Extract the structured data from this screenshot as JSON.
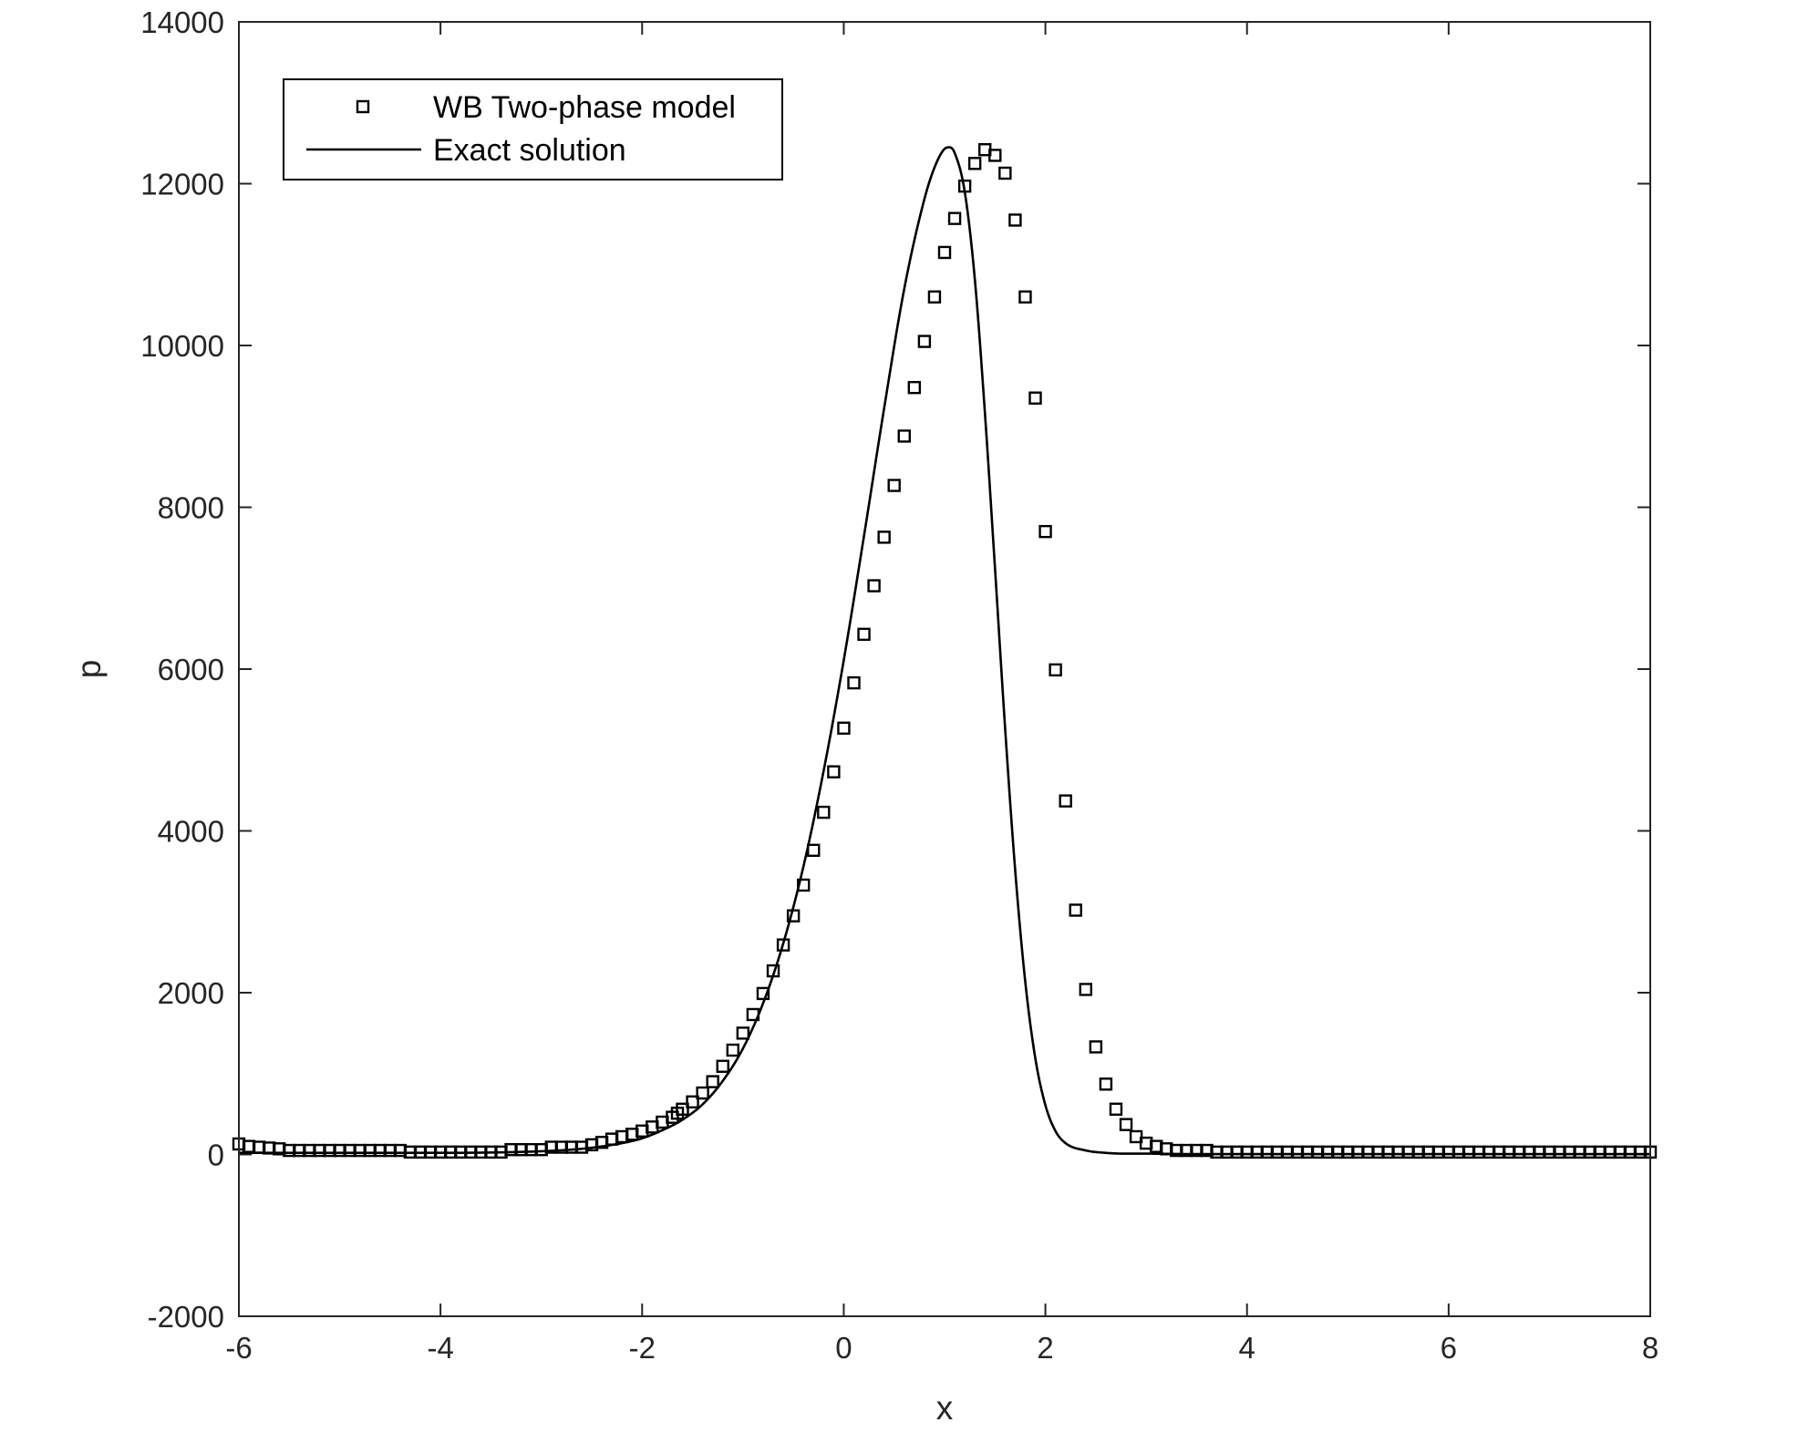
{
  "chart_data": {
    "type": "line",
    "xlabel": "x",
    "ylabel": "p",
    "xlim": [
      -6,
      8
    ],
    "ylim": [
      -2000,
      14000
    ],
    "x_ticks": [
      -6,
      -4,
      -2,
      0,
      2,
      4,
      6,
      8
    ],
    "y_ticks": [
      -2000,
      0,
      2000,
      4000,
      6000,
      8000,
      10000,
      12000,
      14000
    ],
    "x_tick_labels": [
      "-6",
      "-4",
      "-2",
      "0",
      "2",
      "4",
      "6",
      "8"
    ],
    "y_tick_labels": [
      "-2000",
      "0",
      "2000",
      "4000",
      "6000",
      "8000",
      "10000",
      "12000",
      "14000"
    ],
    "grid": false,
    "box": true,
    "legend": {
      "position": "top-left",
      "entries": [
        {
          "label": "WB Two-phase model",
          "marker": "square",
          "line": "none"
        },
        {
          "label": "Exact solution",
          "marker": "none",
          "line": "solid"
        }
      ]
    },
    "colors": {
      "series": "#000000",
      "axes": "#262626"
    },
    "series": [
      {
        "name": "WB Two-phase model",
        "style": "markers",
        "x": [
          -6.0,
          -5.9,
          -5.8,
          -5.7,
          -5.6,
          -5.5,
          -5.4,
          -5.3,
          -5.2,
          -5.1,
          -5.0,
          -4.9,
          -4.8,
          -4.7,
          -4.6,
          -4.5,
          -4.4,
          -4.3,
          -4.2,
          -4.1,
          -4.0,
          -3.9,
          -3.8,
          -3.7,
          -3.6,
          -3.5,
          -3.4,
          -3.3,
          -3.2,
          -3.1,
          -3.0,
          -2.9,
          -2.8,
          -2.7,
          -2.6,
          -2.5,
          -2.4,
          -2.3,
          -2.2,
          -2.1,
          -2.0,
          -1.9,
          -1.8,
          -1.7,
          -1.65,
          -1.6,
          -1.5,
          -1.4,
          -1.3,
          -1.2,
          -1.1,
          -1.0,
          -0.9,
          -0.8,
          -0.7,
          -0.6,
          -0.5,
          -0.4,
          -0.3,
          -0.2,
          -0.1,
          0.0,
          0.1,
          0.2,
          0.3,
          0.4,
          0.5,
          0.6,
          0.7,
          0.8,
          0.9,
          1.0,
          1.1,
          1.2,
          1.3,
          1.4,
          1.5,
          1.6,
          1.7,
          1.8,
          1.9,
          2.0,
          2.1,
          2.2,
          2.3,
          2.4,
          2.5,
          2.6,
          2.7,
          2.8,
          2.9,
          3.0,
          3.1,
          3.2,
          3.3,
          3.4,
          3.5,
          3.6,
          3.7,
          3.8,
          3.9,
          4.0,
          4.1,
          4.2,
          4.3,
          4.4,
          4.5,
          4.6,
          4.7,
          4.8,
          4.9,
          5.0,
          5.1,
          5.2,
          5.3,
          5.4,
          5.5,
          5.6,
          5.7,
          5.8,
          5.9,
          6.0,
          6.1,
          6.2,
          6.3,
          6.4,
          6.5,
          6.6,
          6.7,
          6.8,
          6.9,
          7.0,
          7.1,
          7.2,
          7.3,
          7.4,
          7.5,
          7.6,
          7.7,
          7.8,
          7.9,
          8.0
        ],
        "y": [
          130,
          100,
          90,
          80,
          70,
          50,
          50,
          50,
          50,
          50,
          50,
          50,
          50,
          50,
          50,
          50,
          50,
          30,
          30,
          30,
          30,
          30,
          30,
          30,
          30,
          30,
          30,
          60,
          60,
          60,
          60,
          90,
          90,
          90,
          90,
          120,
          150,
          190,
          220,
          250,
          290,
          340,
          400,
          460,
          510,
          560,
          650,
          760,
          900,
          1090,
          1290,
          1500,
          1730,
          1990,
          2270,
          2590,
          2950,
          3330,
          3760,
          4230,
          4730,
          5270,
          5830,
          6430,
          7030,
          7630,
          8270,
          8880,
          9480,
          10050,
          10600,
          11150,
          11570,
          11970,
          12250,
          12420,
          12350,
          12130,
          11550,
          10600,
          9350,
          7700,
          5990,
          4370,
          3020,
          2040,
          1330,
          870,
          560,
          370,
          220,
          140,
          100,
          70,
          50,
          50,
          50,
          50,
          30,
          30,
          30,
          30,
          30,
          30,
          30,
          30,
          30,
          30,
          30,
          30,
          30,
          30,
          30,
          30,
          30,
          30,
          30,
          30,
          30,
          30,
          30,
          30,
          30,
          30,
          30,
          30,
          30,
          30,
          30,
          30,
          30,
          30,
          30,
          30,
          30,
          30,
          30,
          30,
          30,
          30,
          30,
          30
        ]
      },
      {
        "name": "Exact solution",
        "style": "line",
        "x": [
          -6.0,
          -5.0,
          -4.0,
          -3.0,
          -2.6,
          -2.4,
          -2.2,
          -2.0,
          -1.8,
          -1.6,
          -1.4,
          -1.2,
          -1.0,
          -0.8,
          -0.6,
          -0.4,
          -0.2,
          0.0,
          0.2,
          0.4,
          0.6,
          0.8,
          0.9,
          1.0,
          1.05,
          1.1,
          1.2,
          1.3,
          1.4,
          1.5,
          1.6,
          1.7,
          1.8,
          1.9,
          2.0,
          2.1,
          2.2,
          2.4,
          2.6,
          2.8,
          3.0,
          3.5,
          4.0,
          5.0,
          6.0,
          7.0,
          8.0
        ],
        "y": [
          20,
          20,
          20,
          40,
          70,
          100,
          140,
          200,
          300,
          430,
          620,
          910,
          1310,
          1870,
          2610,
          3560,
          4740,
          6110,
          7640,
          9220,
          10700,
          11810,
          12200,
          12430,
          12450,
          12380,
          11900,
          10820,
          9170,
          7250,
          5280,
          3520,
          2140,
          1190,
          610,
          290,
          140,
          50,
          20,
          10,
          10,
          5,
          5,
          5,
          5,
          5,
          5
        ]
      }
    ]
  }
}
